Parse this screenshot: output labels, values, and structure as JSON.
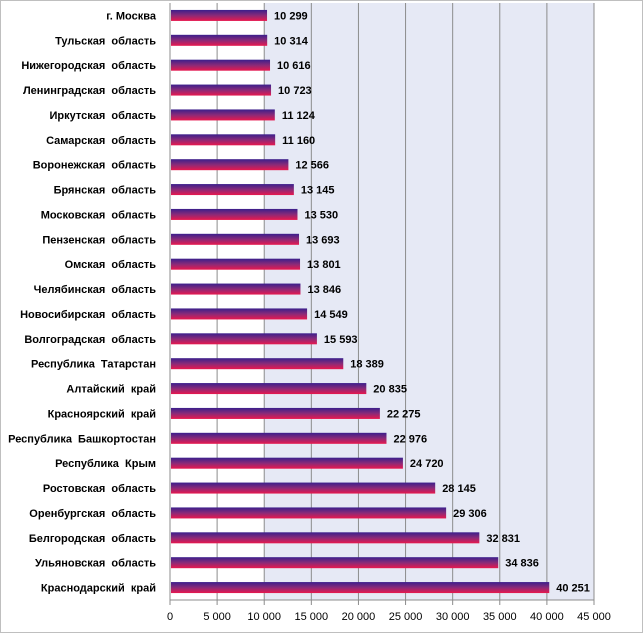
{
  "chart_data": {
    "type": "bar",
    "orientation": "horizontal",
    "categories": [
      "г. Москва",
      "Тульская  область",
      "Нижегородская  область",
      "Ленинградская  область",
      "Иркутская  область",
      "Самарская  область",
      "Воронежская  область",
      "Брянская  область",
      "Московская  область",
      "Пензенская  область",
      "Омская  область",
      "Челябинская  область",
      "Новосибирская  область",
      "Волгоградская  область",
      "Республика  Татарстан",
      "Алтайский  край",
      "Красноярский  край",
      "Республика  Башкортостан",
      "Республика  Крым",
      "Ростовская  область",
      "Оренбургская  область",
      "Белгородская  область",
      "Ульяновская  область",
      "Краснодарский  край"
    ],
    "values": [
      10299,
      10314,
      10616,
      10723,
      11124,
      11160,
      12566,
      13145,
      13530,
      13693,
      13801,
      13846,
      14549,
      15593,
      18389,
      20835,
      22275,
      22976,
      24720,
      28145,
      29306,
      32831,
      34836,
      40251
    ],
    "value_labels": [
      "10 299",
      "10 314",
      "10 616",
      "10 723",
      "11 124",
      "11 160",
      "12 566",
      "13 145",
      "13 530",
      "13 693",
      "13 801",
      "13 846",
      "14 549",
      "15 593",
      "18 389",
      "20 835",
      "22 275",
      "22 976",
      "24 720",
      "28 145",
      "29 306",
      "32 831",
      "34 836",
      "40 251"
    ],
    "xlim": [
      0,
      45000
    ],
    "x_ticks": [
      0,
      5000,
      10000,
      15000,
      20000,
      25000,
      30000,
      35000,
      40000,
      45000
    ],
    "x_tick_labels": [
      "0",
      "5 000",
      "10 000",
      "15 000",
      "20 000",
      "25 000",
      "30 000",
      "35 000",
      "40 000",
      "45 000"
    ],
    "title": "",
    "xlabel": "",
    "ylabel": "",
    "grid": true,
    "legend": "none",
    "colors": {
      "bar_top": "#3b1f8c",
      "bar_bottom": "#e8174e",
      "bar_mid": "#8a2a78",
      "plot_shade": "#e6e9f5",
      "grid": "#8c8c8c"
    }
  }
}
